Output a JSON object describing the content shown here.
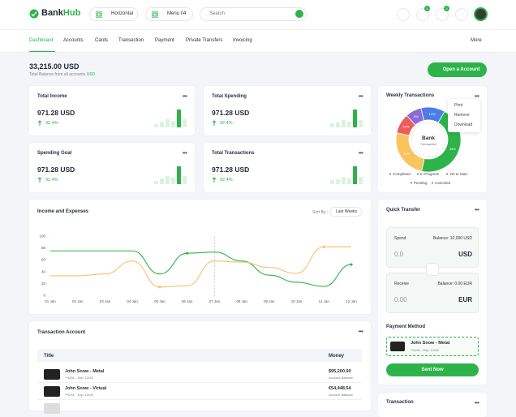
{
  "header": {
    "logo_a": "Bank",
    "logo_b": "Hub",
    "layout": "Horizontal",
    "menu": "Menu 04",
    "search": "Search",
    "badges": [
      "3",
      "3"
    ]
  },
  "nav": {
    "items": [
      "Dashboard",
      "Accounts",
      "Cards",
      "Transection",
      "Payment",
      "Private Transfers",
      "Invoicing"
    ],
    "more": "More"
  },
  "balance": {
    "amount": "33,215.00 USD",
    "caption": "Total Balance from all accounts",
    "currency": "USD",
    "button": "Open a Account"
  },
  "stats": [
    {
      "title": "Total Income",
      "value": "971.28 USD",
      "change": "92.4%"
    },
    {
      "title": "Total Spending",
      "value": "971.28 USD",
      "change": "92.4%"
    },
    {
      "title": "Spending Goal",
      "value": "971.28 USD",
      "change": "92.4%"
    },
    {
      "title": "Total Transactions",
      "value": "971.28 USD",
      "change": "92.4%"
    }
  ],
  "weekly": {
    "title": "Weekly Transactions",
    "menu": [
      "Print",
      "Remove",
      "Download"
    ]
  },
  "chart_data": [
    {
      "type": "donut",
      "center_title": "Bank",
      "center_subtitle": "Transaction",
      "categories": [
        "Completed",
        "In Progress",
        "Yet to Start",
        "Pending",
        "Canceled"
      ],
      "values": [
        45,
        25,
        10,
        8,
        12
      ],
      "value_labels": [
        "45%",
        "25%",
        "10%",
        "8%",
        "12%"
      ],
      "colors": [
        "#2db34a",
        "#f9c45c",
        "#ef5b5b",
        "#8b6bd9",
        "#4d7de6"
      ]
    },
    {
      "type": "line",
      "title": "Income and Expenses",
      "sort_label": "Sort By :",
      "sort_value": "Last Weeks",
      "categories": [
        "01 Jan",
        "02 Jan",
        "03 Jan",
        "04 Jan",
        "05 Jan",
        "06 Jan",
        "07 Jan",
        "08 Jan",
        "09 Jan",
        "10 Jan",
        "11 Jan",
        "12 Jan"
      ],
      "series": [
        {
          "color": "#2db34a",
          "values": [
            75,
            75,
            75,
            75,
            36,
            71,
            73,
            58,
            34,
            22,
            15,
            52
          ],
          "markers": [
            5,
            11
          ]
        },
        {
          "color": "#f9c06a",
          "values": [
            33,
            33,
            36,
            58,
            14,
            16,
            58,
            56,
            47,
            37,
            82,
            82
          ],
          "markers": [
            4,
            10
          ]
        }
      ],
      "ylim": [
        0,
        100
      ],
      "yticks": [
        0,
        20,
        40,
        60,
        80,
        100
      ],
      "cursor_index": 6
    }
  ],
  "transfer": {
    "title": "Quick Transfer",
    "spend_label": "Spend",
    "spend_balance": "Balance: 10,000 USD",
    "spend_amount": "0.0",
    "spend_currency": "USD",
    "receive_label": "Receive",
    "receive_balance": "Balance: 0.00 EUR",
    "receive_amount": "0.00",
    "receive_currency": "EUR"
  },
  "payment": {
    "title": "Payment Method",
    "card_name": "John Snow - Metal",
    "card_meta": "**4291 - Exp: 12/26",
    "button": "Sent Now"
  },
  "transactions": {
    "title": "Transaction Account",
    "columns": [
      "Title",
      "Money"
    ],
    "rows": [
      {
        "name": "John Snow - Metal",
        "meta": "**4291 - Exp: 12/26",
        "amount": "$95,200.00",
        "caption": "Account Balance"
      },
      {
        "name": "John Snow - Virtual",
        "meta": "**4291 - Exp: 12/26",
        "amount": "€54,448.54",
        "caption": "Account Balance"
      }
    ]
  },
  "side_transaction": {
    "title": "Transaction"
  }
}
